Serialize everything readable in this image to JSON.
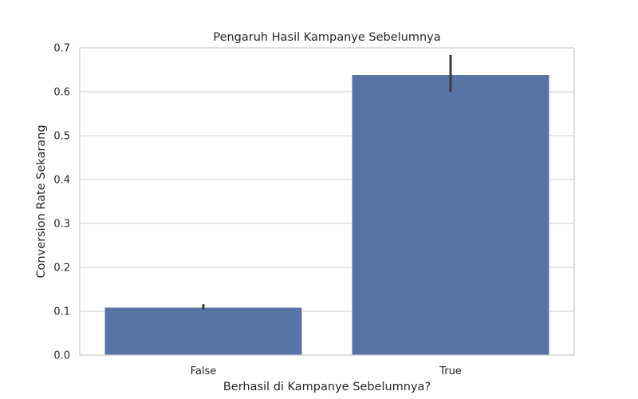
{
  "chart_data": {
    "type": "bar",
    "title": "Pengaruh Hasil Kampanye Sebelumnya",
    "xlabel": "Berhasil di Kampanye Sebelumnya?",
    "ylabel": "Conversion Rate Sekarang",
    "categories": [
      "False",
      "True"
    ],
    "values": [
      0.109,
      0.639
    ],
    "error_bars": [
      {
        "low": 0.104,
        "high": 0.116
      },
      {
        "low": 0.6,
        "high": 0.684
      }
    ],
    "ylim": [
      0,
      0.7
    ],
    "yticks": [
      "0.0",
      "0.1",
      "0.2",
      "0.3",
      "0.4",
      "0.5",
      "0.6",
      "0.7"
    ],
    "grid": true,
    "colors": {
      "bar": "#5874a5",
      "error_bar": "#3a3a3a",
      "grid": "#cccccc",
      "frame": "#cccccc"
    }
  }
}
